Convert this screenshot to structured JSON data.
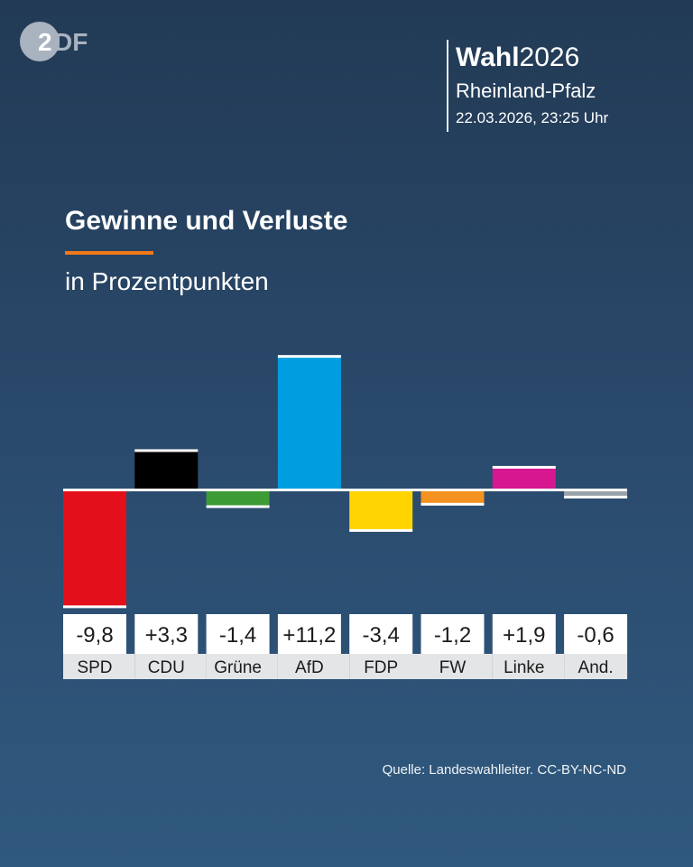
{
  "header": {
    "logo_text": "ZDF",
    "brand_bold": "Wahl",
    "brand_year": "2026",
    "region": "Rheinland-Pfalz",
    "datetime": "22.03.2026, 23:25 Uhr"
  },
  "chart_data": {
    "type": "bar",
    "title": "Gewinne und Verluste",
    "subtitle": "in Prozentpunkten",
    "categories": [
      "SPD",
      "CDU",
      "Grüne",
      "AfD",
      "FDP",
      "FW",
      "Linke",
      "And."
    ],
    "values": [
      -9.8,
      3.3,
      -1.4,
      11.2,
      -3.4,
      -1.2,
      1.9,
      -0.6
    ],
    "value_labels": [
      "-9,8",
      "+3,3",
      "-1,4",
      "+11,2",
      "-3,4",
      "-1,2",
      "+1,9",
      "-0,6"
    ],
    "colors": [
      "#e3101b",
      "#000000",
      "#3d9b35",
      "#009ee0",
      "#ffd400",
      "#f39220",
      "#d6178f",
      "#9aa3ab"
    ],
    "grid": false,
    "legend": "none"
  },
  "footer": {
    "source": "Quelle: Landeswahlleiter. CC-BY-NC-ND"
  }
}
